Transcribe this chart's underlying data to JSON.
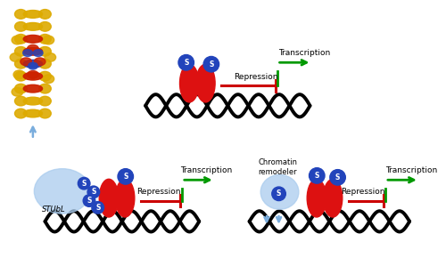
{
  "bg_color": "#ffffff",
  "red_color": "#dd1111",
  "blue_circle_color": "#2244bb",
  "light_blue": "#7aaddd",
  "light_blue2": "#aaccee",
  "green_color": "#009900",
  "black": "#000000",
  "dark_red": "#cc0000",
  "gold_color": "#ddaa00",
  "sumo_label": "S",
  "stubl_label": "STUbL",
  "repression_label": "Repression",
  "transcription_label": "Transcription",
  "chromatin_label": "Chromatin\nremodeler",
  "fig_w": 5.0,
  "fig_h": 2.9,
  "dpi": 100
}
